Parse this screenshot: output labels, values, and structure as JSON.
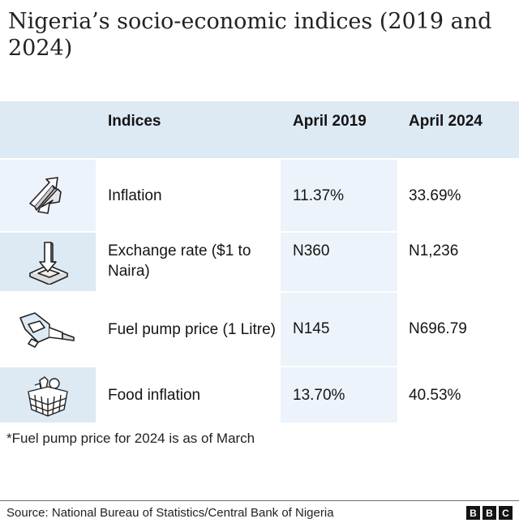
{
  "title": "Nigeria’s socio-economic indices (2019 and 2024)",
  "chart_data": {
    "type": "table",
    "columns": [
      "Indices",
      "April 2019",
      "April 2024"
    ],
    "rows": [
      {
        "icon": "inflation-arrows-icon",
        "index": "Inflation",
        "april_2019": "11.37%",
        "april_2024": "33.69%"
      },
      {
        "icon": "exchange-rate-icon",
        "index": "Exchange rate ($1 to Naira)",
        "april_2019": "N360",
        "april_2024": "N1,236"
      },
      {
        "icon": "fuel-pump-nozzle-icon",
        "index": "Fuel pump price (1 Litre)",
        "april_2019": "N145",
        "april_2024": "N696.79"
      },
      {
        "icon": "food-basket-icon",
        "index": "Food inflation",
        "april_2019": "13.70%",
        "april_2024": "40.53%"
      }
    ]
  },
  "note": "*Fuel pump price for 2024 is as of March",
  "source": "Source: National Bureau of Statistics/Central Bank of Nigeria",
  "logo": [
    "B",
    "B",
    "C"
  ],
  "colors": {
    "header_bg": "#dde9f3",
    "column_highlight": "#edf3fa",
    "icon_stroke": "#222222"
  }
}
